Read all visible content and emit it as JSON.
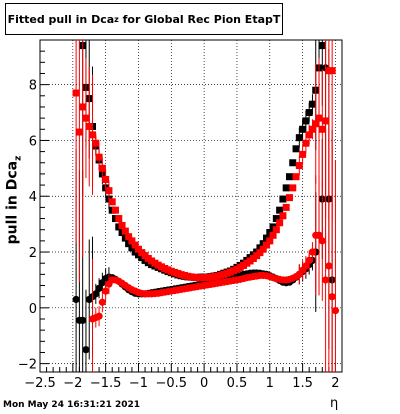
{
  "title": {
    "main": "Fitted pull in Dca",
    "sub": "z",
    "rest": " for Global Rec Pion EtapT"
  },
  "ylabel": {
    "main": "pull in Dca",
    "sub": "z"
  },
  "xlabel": "η",
  "timestamp": "Mon May 24 16:31:21 2021",
  "colors": {
    "series_black": "#000000",
    "series_red": "#ff0000",
    "grid": "#000000"
  },
  "chart_data": {
    "type": "scatter",
    "xlim": [
      -2.5,
      2.1
    ],
    "ylim": [
      -2.3,
      9.6
    ],
    "grid": true,
    "x_ticks": [
      -2.5,
      -2,
      -1.5,
      -1,
      -0.5,
      0,
      0.5,
      1,
      1.5,
      2
    ],
    "x_tick_labels": [
      "−2.5",
      "−2",
      "−1.5",
      "−1",
      "−0.5",
      "0",
      "0.5",
      "1",
      "1.5",
      "2"
    ],
    "y_ticks": [
      -2,
      0,
      2,
      4,
      6,
      8
    ],
    "y_tick_labels": [
      "−2",
      "0",
      "2",
      "4",
      "6",
      "8"
    ],
    "series": [
      {
        "color": "#000000",
        "sigma": {
          "x": [
            -1.85,
            -1.8,
            -1.75,
            -1.7,
            -1.65,
            -1.6,
            -1.55,
            -1.5,
            -1.45,
            -1.4,
            -1.35,
            -1.3,
            -1.25,
            -1.2,
            -1.15,
            -1.1,
            -1.05,
            -1.0,
            -0.95,
            -0.9,
            -0.85,
            -0.8,
            -0.75,
            -0.7,
            -0.65,
            -0.6,
            -0.55,
            -0.5,
            -0.45,
            -0.4,
            -0.35,
            -0.3,
            -0.25,
            -0.2,
            -0.15,
            -0.1,
            -0.05,
            0.0,
            0.05,
            0.1,
            0.15,
            0.2,
            0.25,
            0.3,
            0.35,
            0.4,
            0.45,
            0.5,
            0.55,
            0.6,
            0.65,
            0.7,
            0.75,
            0.8,
            0.85,
            0.9,
            0.95,
            1.0,
            1.05,
            1.1,
            1.15,
            1.2,
            1.25,
            1.3,
            1.35,
            1.4,
            1.45,
            1.5,
            1.55,
            1.6,
            1.65,
            1.7,
            1.75,
            1.8
          ],
          "y": [
            9.4,
            7.9,
            7.5,
            6.5,
            5.8,
            5.3,
            4.8,
            4.3,
            3.9,
            3.5,
            3.2,
            2.9,
            2.7,
            2.5,
            2.3,
            2.15,
            2.0,
            1.9,
            1.8,
            1.7,
            1.62,
            1.55,
            1.5,
            1.45,
            1.4,
            1.35,
            1.3,
            1.26,
            1.22,
            1.18,
            1.15,
            1.13,
            1.11,
            1.1,
            1.09,
            1.09,
            1.1,
            1.1,
            1.1,
            1.12,
            1.14,
            1.16,
            1.2,
            1.24,
            1.28,
            1.32,
            1.38,
            1.45,
            1.52,
            1.6,
            1.7,
            1.8,
            1.9,
            2.0,
            2.15,
            2.3,
            2.5,
            2.7,
            2.9,
            3.2,
            3.5,
            3.9,
            4.3,
            4.7,
            5.2,
            5.7,
            6.1,
            6.4,
            6.7,
            7.0,
            7.3,
            7.8,
            8.6,
            9.4
          ]
        },
        "mean": {
          "x": [
            -1.95,
            -1.9,
            -1.85,
            -1.8,
            -1.75,
            -1.7,
            -1.65,
            -1.6,
            -1.55,
            -1.5,
            -1.45,
            -1.4,
            -1.35,
            -1.3,
            -1.25,
            -1.2,
            -1.15,
            -1.1,
            -1.05,
            -1.0,
            -0.95,
            -0.9,
            -0.85,
            -0.8,
            -0.75,
            -0.7,
            -0.65,
            -0.6,
            -0.55,
            -0.5,
            -0.45,
            -0.4,
            -0.35,
            -0.3,
            -0.25,
            -0.2,
            -0.15,
            -0.1,
            -0.05,
            0.0,
            0.05,
            0.1,
            0.15,
            0.2,
            0.25,
            0.3,
            0.35,
            0.4,
            0.45,
            0.5,
            0.55,
            0.6,
            0.65,
            0.7,
            0.75,
            0.8,
            0.85,
            0.9,
            0.95,
            1.0,
            1.05,
            1.1,
            1.15,
            1.2,
            1.25,
            1.3,
            1.35,
            1.4,
            1.45,
            1.5,
            1.55,
            1.6,
            1.65,
            1.7,
            1.75,
            1.8,
            1.85,
            1.9,
            1.95
          ],
          "y": [
            0.3,
            -0.45,
            -0.45,
            -1.5,
            0.3,
            0.4,
            0.5,
            0.7,
            0.9,
            1.05,
            1.1,
            1.08,
            1.02,
            0.95,
            0.85,
            0.75,
            0.65,
            0.58,
            0.52,
            0.5,
            0.5,
            0.5,
            0.52,
            0.54,
            0.56,
            0.58,
            0.6,
            0.62,
            0.64,
            0.66,
            0.68,
            0.7,
            0.72,
            0.74,
            0.76,
            0.78,
            0.8,
            0.82,
            0.85,
            0.88,
            0.9,
            0.92,
            0.95,
            0.98,
            1.0,
            1.03,
            1.06,
            1.09,
            1.12,
            1.15,
            1.18,
            1.2,
            1.22,
            1.24,
            1.25,
            1.25,
            1.24,
            1.22,
            1.2,
            1.15,
            1.1,
            1.05,
            0.98,
            0.92,
            0.9,
            0.92,
            1.0,
            1.1,
            1.2,
            1.3,
            1.4,
            1.55,
            1.7,
            2.0,
            2.6,
            3.9,
            8.6,
            3.9,
            1.0
          ]
        }
      },
      {
        "color": "#ff0000",
        "sigma": {
          "x": [
            -1.95,
            -1.9,
            -1.85,
            -1.8,
            -1.75,
            -1.7,
            -1.65,
            -1.6,
            -1.55,
            -1.5,
            -1.45,
            -1.4,
            -1.35,
            -1.3,
            -1.25,
            -1.2,
            -1.15,
            -1.1,
            -1.05,
            -1.0,
            -0.95,
            -0.9,
            -0.85,
            -0.8,
            -0.75,
            -0.7,
            -0.65,
            -0.6,
            -0.55,
            -0.5,
            -0.45,
            -0.4,
            -0.35,
            -0.3,
            -0.25,
            -0.2,
            -0.15,
            -0.1,
            -0.05,
            0.0,
            0.05,
            0.1,
            0.15,
            0.2,
            0.25,
            0.3,
            0.35,
            0.4,
            0.45,
            0.5,
            0.55,
            0.6,
            0.65,
            0.7,
            0.75,
            0.8,
            0.85,
            0.9,
            0.95,
            1.0,
            1.05,
            1.1,
            1.15,
            1.2,
            1.25,
            1.3,
            1.35,
            1.4,
            1.45,
            1.5,
            1.55,
            1.6,
            1.65,
            1.7,
            1.75,
            1.8,
            1.85,
            1.9,
            1.95
          ],
          "y": [
            7.7,
            6.3,
            7.2,
            6.8,
            6.5,
            6.2,
            5.9,
            5.4,
            5.0,
            4.6,
            4.2,
            3.8,
            3.5,
            3.2,
            2.95,
            2.75,
            2.55,
            2.4,
            2.25,
            2.1,
            1.98,
            1.87,
            1.77,
            1.68,
            1.6,
            1.53,
            1.47,
            1.41,
            1.36,
            1.31,
            1.27,
            1.23,
            1.19,
            1.16,
            1.13,
            1.11,
            1.09,
            1.08,
            1.08,
            1.08,
            1.09,
            1.1,
            1.12,
            1.14,
            1.17,
            1.2,
            1.24,
            1.28,
            1.33,
            1.38,
            1.45,
            1.52,
            1.6,
            1.68,
            1.77,
            1.87,
            1.98,
            2.1,
            2.25,
            2.4,
            2.6,
            2.8,
            3.05,
            3.3,
            3.6,
            3.95,
            4.3,
            4.7,
            5.1,
            5.5,
            5.9,
            6.2,
            6.4,
            6.6,
            6.8,
            6.4,
            6.7,
            8.5,
            8.5
          ]
        },
        "mean": {
          "x": [
            -1.7,
            -1.65,
            -1.6,
            -1.55,
            -1.5,
            -1.45,
            -1.4,
            -1.35,
            -1.3,
            -1.25,
            -1.2,
            -1.15,
            -1.1,
            -1.05,
            -1.0,
            -0.95,
            -0.9,
            -0.85,
            -0.8,
            -0.75,
            -0.7,
            -0.65,
            -0.6,
            -0.55,
            -0.5,
            -0.45,
            -0.4,
            -0.35,
            -0.3,
            -0.25,
            -0.2,
            -0.15,
            -0.1,
            -0.05,
            0.0,
            0.05,
            0.1,
            0.15,
            0.2,
            0.25,
            0.3,
            0.35,
            0.4,
            0.45,
            0.5,
            0.55,
            0.6,
            0.65,
            0.7,
            0.75,
            0.8,
            0.85,
            0.9,
            0.95,
            1.0,
            1.05,
            1.1,
            1.15,
            1.2,
            1.25,
            1.3,
            1.35,
            1.4,
            1.45,
            1.5,
            1.55,
            1.6,
            1.65,
            1.7,
            1.75,
            1.8,
            1.85,
            1.9,
            1.95,
            2.0
          ],
          "y": [
            -0.4,
            -0.35,
            -0.3,
            0.2,
            0.6,
            0.85,
            1.0,
            1.0,
            0.95,
            0.88,
            0.8,
            0.72,
            0.65,
            0.6,
            0.55,
            0.52,
            0.5,
            0.5,
            0.5,
            0.51,
            0.52,
            0.54,
            0.56,
            0.58,
            0.6,
            0.62,
            0.64,
            0.66,
            0.68,
            0.7,
            0.72,
            0.74,
            0.76,
            0.78,
            0.8,
            0.82,
            0.84,
            0.86,
            0.88,
            0.9,
            0.92,
            0.94,
            0.96,
            0.98,
            1.0,
            1.02,
            1.05,
            1.08,
            1.1,
            1.12,
            1.14,
            1.16,
            1.16,
            1.15,
            1.12,
            1.08,
            1.04,
            1.02,
            1.0,
            1.0,
            1.02,
            1.06,
            1.12,
            1.2,
            1.35,
            1.5,
            1.7,
            2.0,
            2.6,
            2.6,
            2.4,
            1.0,
            1.5,
            0.4,
            -0.1
          ]
        }
      }
    ]
  }
}
